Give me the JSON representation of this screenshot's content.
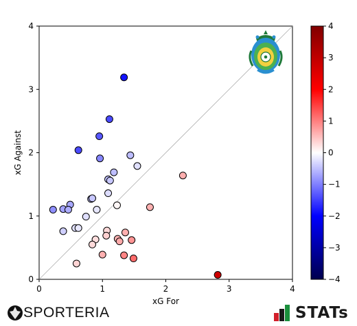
{
  "chart_data": {
    "type": "scatter",
    "xlabel": "xG For",
    "ylabel": "xG Against",
    "xlim": [
      0,
      4
    ],
    "ylim": [
      0,
      4
    ],
    "xticks": [
      "0",
      "1",
      "2",
      "3",
      "4"
    ],
    "yticks": [
      "0",
      "1",
      "2",
      "3",
      "4"
    ],
    "diagonal_reference_line": true,
    "colorbar": {
      "ticks": [
        "4",
        "3",
        "2",
        "1",
        "0",
        "−1",
        "−2",
        "−3",
        "−4"
      ],
      "range": [
        -4,
        4
      ],
      "colormap": "seismic"
    },
    "points": [
      {
        "x": 1.34,
        "y": 3.19
      },
      {
        "x": 1.11,
        "y": 2.53
      },
      {
        "x": 0.95,
        "y": 2.26
      },
      {
        "x": 0.62,
        "y": 2.04
      },
      {
        "x": 0.96,
        "y": 1.91
      },
      {
        "x": 1.44,
        "y": 1.96
      },
      {
        "x": 1.55,
        "y": 1.79
      },
      {
        "x": 1.18,
        "y": 1.69
      },
      {
        "x": 1.09,
        "y": 1.58
      },
      {
        "x": 1.12,
        "y": 1.56
      },
      {
        "x": 2.27,
        "y": 1.64
      },
      {
        "x": 1.09,
        "y": 1.36
      },
      {
        "x": 0.82,
        "y": 1.27
      },
      {
        "x": 0.84,
        "y": 1.28
      },
      {
        "x": 1.23,
        "y": 1.17
      },
      {
        "x": 0.49,
        "y": 1.18
      },
      {
        "x": 0.22,
        "y": 1.1
      },
      {
        "x": 0.38,
        "y": 1.11
      },
      {
        "x": 0.46,
        "y": 1.1
      },
      {
        "x": 0.91,
        "y": 1.1
      },
      {
        "x": 1.75,
        "y": 1.14
      },
      {
        "x": 0.74,
        "y": 0.99
      },
      {
        "x": 0.57,
        "y": 0.81
      },
      {
        "x": 0.62,
        "y": 0.81
      },
      {
        "x": 0.38,
        "y": 0.76
      },
      {
        "x": 1.07,
        "y": 0.77
      },
      {
        "x": 1.36,
        "y": 0.74
      },
      {
        "x": 1.06,
        "y": 0.69
      },
      {
        "x": 0.89,
        "y": 0.63
      },
      {
        "x": 1.24,
        "y": 0.64
      },
      {
        "x": 1.27,
        "y": 0.6
      },
      {
        "x": 1.46,
        "y": 0.62
      },
      {
        "x": 0.84,
        "y": 0.55
      },
      {
        "x": 1.0,
        "y": 0.39
      },
      {
        "x": 1.34,
        "y": 0.38
      },
      {
        "x": 1.49,
        "y": 0.33
      },
      {
        "x": 0.59,
        "y": 0.25
      },
      {
        "x": 2.82,
        "y": 0.07
      }
    ]
  },
  "branding": {
    "left_text": "SPORTERIA",
    "right_text": "STATs",
    "crest_icon": "team-crest-icon"
  }
}
